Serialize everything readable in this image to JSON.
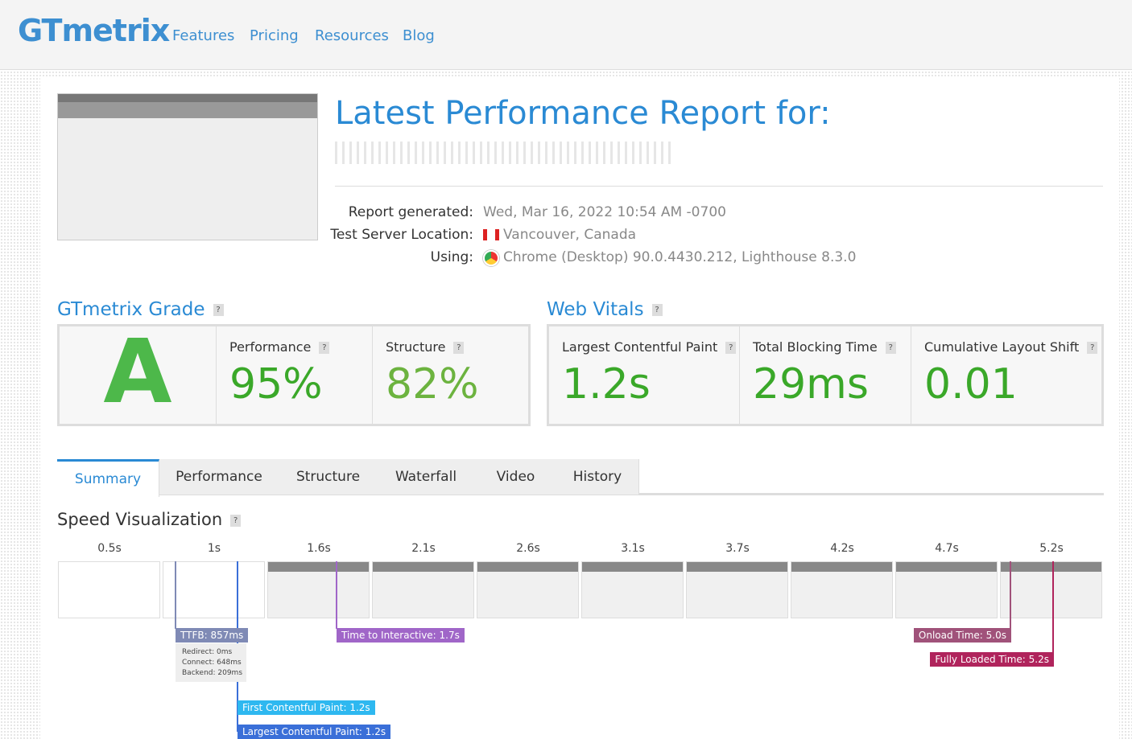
{
  "header": {
    "logo": "GTmetrix",
    "nav": [
      "Features",
      "Pricing",
      "Resources",
      "Blog"
    ]
  },
  "report": {
    "title": "Latest Performance Report for:",
    "details": [
      {
        "label": "Report generated:",
        "value": "Wed, Mar 16, 2022 10:54 AM -0700"
      },
      {
        "label": "Test Server Location:",
        "value": "Vancouver, Canada"
      },
      {
        "label": "Using:",
        "value": "Chrome (Desktop) 90.0.4430.212, Lighthouse 8.3.0"
      }
    ]
  },
  "grade": {
    "title": "GTmetrix Grade",
    "help": "?",
    "letter": "A",
    "metrics": [
      {
        "label": "Performance",
        "value": "95%"
      },
      {
        "label": "Structure",
        "value": "82%"
      }
    ]
  },
  "vitals": {
    "title": "Web Vitals",
    "help": "?",
    "metrics": [
      {
        "label": "Largest Contentful Paint",
        "value": "1.2s"
      },
      {
        "label": "Total Blocking Time",
        "value": "29ms"
      },
      {
        "label": "Cumulative Layout Shift",
        "value": "0.01"
      }
    ]
  },
  "tabs": [
    "Summary",
    "Performance",
    "Structure",
    "Waterfall",
    "Video",
    "History"
  ],
  "speed": {
    "title": "Speed Visualization",
    "help": "?",
    "times": [
      "0.5s",
      "1s",
      "1.6s",
      "2.1s",
      "2.6s",
      "3.1s",
      "3.7s",
      "4.2s",
      "4.7s",
      "5.2s"
    ],
    "markers": {
      "ttfb": "TTFB: 857ms",
      "ttfb_details": [
        "Redirect: 0ms",
        "Connect: 648ms",
        "Backend: 209ms"
      ],
      "tti": "Time to Interactive: 1.7s",
      "onload": "Onload Time: 5.0s",
      "fully": "Fully Loaded Time: 5.2s",
      "fcp": "First Contentful Paint: 1.2s",
      "lcp": "Largest Contentful Paint: 1.2s"
    }
  }
}
